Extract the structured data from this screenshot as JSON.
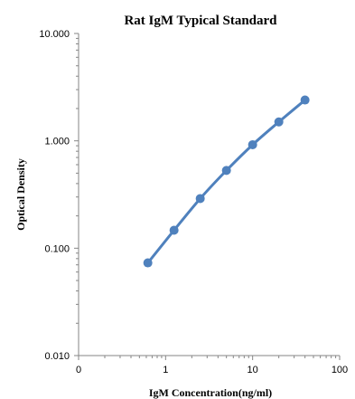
{
  "chart_data": {
    "type": "scatter",
    "title": "Rat IgM Typical Standard",
    "xlabel": "IgM  Concentration(ng/ml)",
    "ylabel": "Optical  Density",
    "x_scale": "log",
    "y_scale": "log",
    "xlim": [
      0.1,
      100
    ],
    "ylim": [
      0.01,
      10
    ],
    "x_tick_labels": [
      "0",
      "1",
      "10",
      "100"
    ],
    "y_tick_labels": [
      "0.010",
      "0.100",
      "1.000",
      "10.000"
    ],
    "grid": false,
    "legend": "none",
    "series": [
      {
        "x": [
          0.625,
          1.25,
          2.5,
          5,
          10,
          20,
          40
        ],
        "y": [
          0.073,
          0.147,
          0.29,
          0.53,
          0.92,
          1.5,
          2.4
        ],
        "color": "#4F81BD",
        "line": "smooth",
        "marker": "circle"
      }
    ]
  }
}
